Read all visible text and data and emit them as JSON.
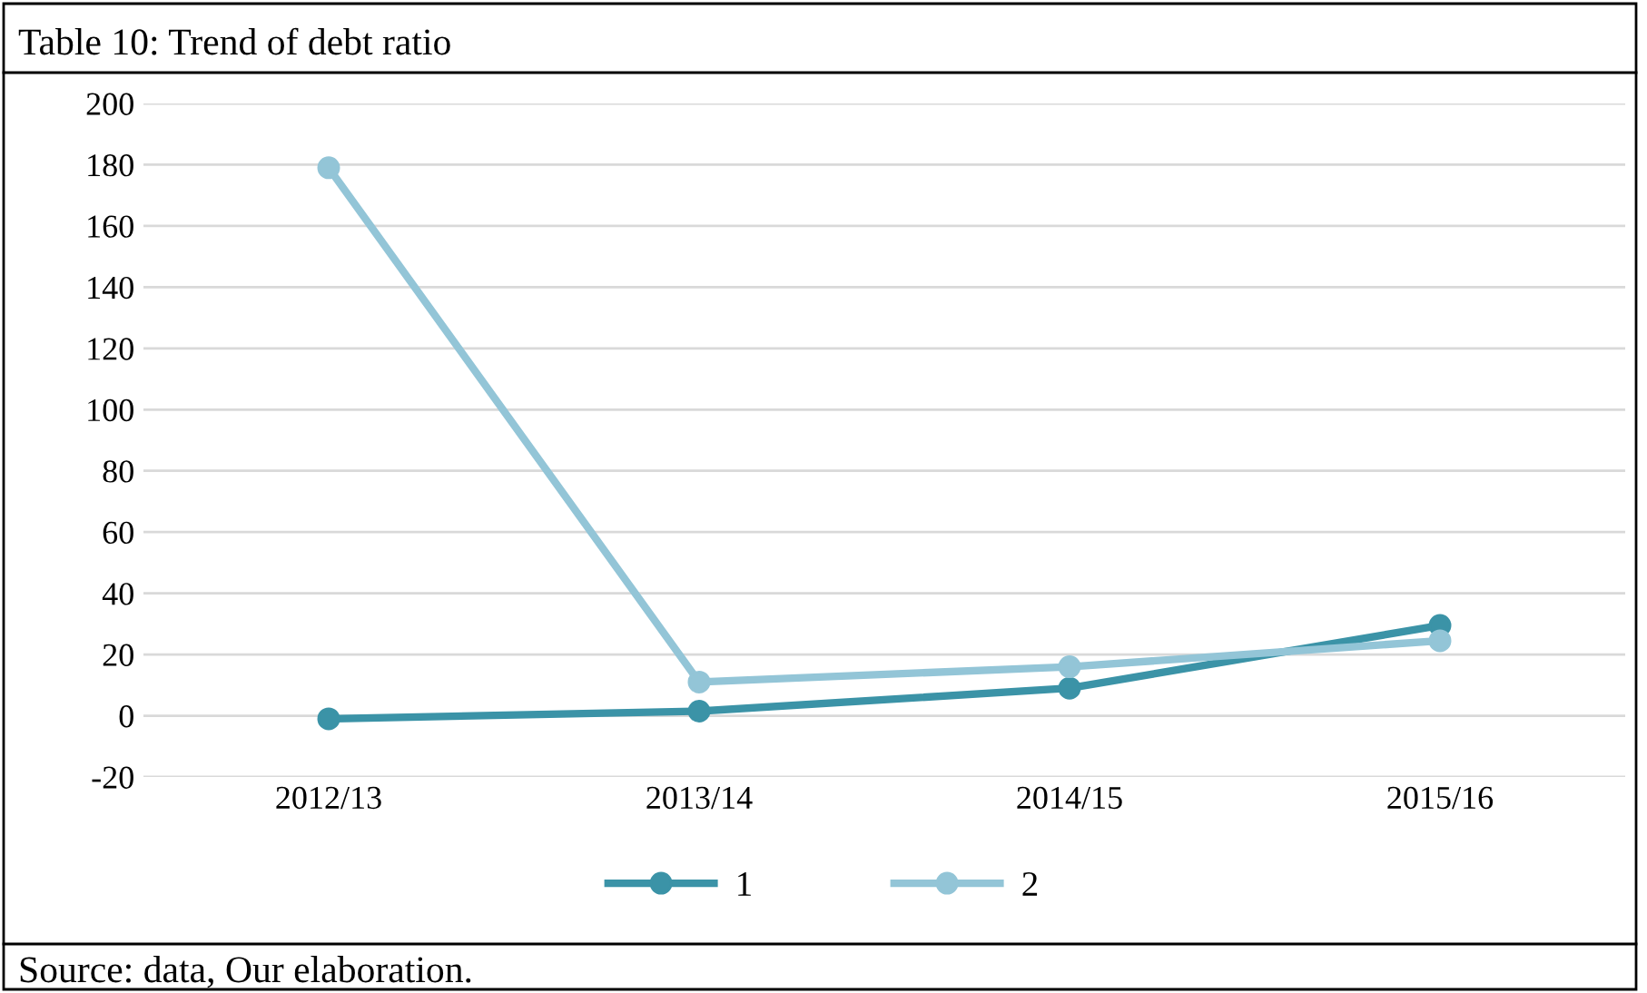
{
  "chart_data": {
    "type": "line",
    "title": "Table 10: Trend of debt ratio",
    "categories": [
      "2012/13",
      "2013/14",
      "2014/15",
      "2015/16"
    ],
    "series": [
      {
        "name": "1",
        "color": "#3b93a7",
        "values": [
          -1,
          1.5,
          9,
          29.5
        ]
      },
      {
        "name": "2",
        "color": "#93c5d7",
        "values": [
          179,
          11,
          16,
          24.5
        ]
      }
    ],
    "ylim": [
      -20,
      200
    ],
    "yticks": [
      -20,
      0,
      20,
      40,
      60,
      80,
      100,
      120,
      140,
      160,
      180,
      200
    ],
    "grid": "y",
    "legend": "bottom",
    "marker": "circle",
    "line_style": "solid",
    "annotations": [
      "Source: data, Our elaboration."
    ]
  }
}
